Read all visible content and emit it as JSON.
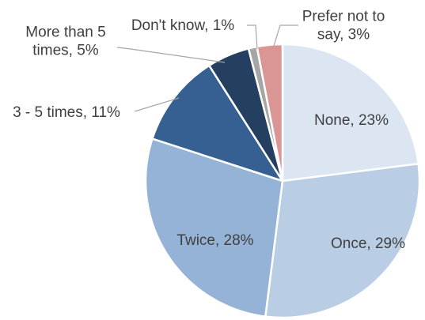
{
  "chart_data": {
    "type": "pie",
    "title": "",
    "slices": [
      {
        "label": "None",
        "value": 23,
        "data_label": [
          "None, 23%"
        ],
        "color": "#dce6f2"
      },
      {
        "label": "Once",
        "value": 29,
        "data_label": [
          "Once, 29%"
        ],
        "color": "#b9cde5"
      },
      {
        "label": "Twice",
        "value": 28,
        "data_label": [
          "Twice, 28%"
        ],
        "color": "#95b3d7"
      },
      {
        "label": "3 - 5 times",
        "value": 11,
        "data_label": [
          "3 - 5 times, 11%"
        ],
        "color": "#366092"
      },
      {
        "label": "More than 5 times",
        "value": 5,
        "data_label": [
          "More than 5",
          "times, 5%"
        ],
        "color": "#243f60"
      },
      {
        "label": "Don't know",
        "value": 1,
        "data_label": [
          "Don't know, 1%"
        ],
        "color": "#a6a6a6"
      },
      {
        "label": "Prefer not to say",
        "value": 3,
        "data_label": [
          "Prefer not to",
          "say, 3%"
        ],
        "color": "#da9694"
      }
    ],
    "start_angle_deg": 0,
    "direction": "clockwise",
    "label_text_color": "#404040",
    "leader_line_color": "#a6a6a6",
    "legend": "none"
  }
}
